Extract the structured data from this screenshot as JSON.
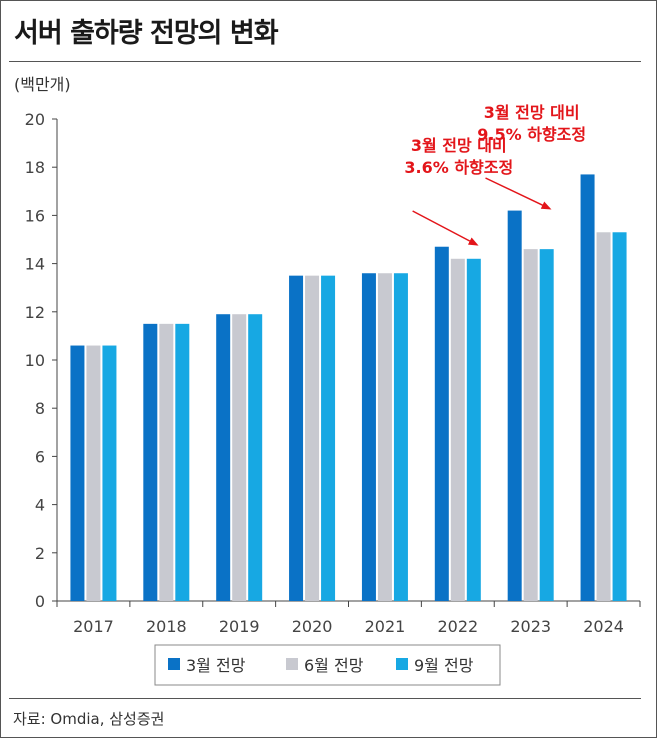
{
  "header": {
    "title": "서버 출하량 전망의 변화",
    "unit": "(백만개)"
  },
  "footer": {
    "source": "자료: Omdia, 삼성증권"
  },
  "chart_data": {
    "type": "bar",
    "categories": [
      "2017",
      "2018",
      "2019",
      "2020",
      "2021",
      "2022",
      "2023",
      "2024"
    ],
    "series": [
      {
        "name": "3월 전망",
        "color": "#0a72c6",
        "values": [
          10.6,
          11.5,
          11.9,
          13.5,
          13.6,
          14.7,
          16.2,
          17.7
        ]
      },
      {
        "name": "6월 전망",
        "color": "#c8c9d0",
        "values": [
          10.6,
          11.5,
          11.9,
          13.5,
          13.6,
          14.2,
          14.6,
          15.3
        ]
      },
      {
        "name": "9월 전망",
        "color": "#17a8e3",
        "values": [
          10.6,
          11.5,
          11.9,
          13.5,
          13.6,
          14.2,
          14.6,
          15.3
        ]
      }
    ],
    "ylabel": "(백만개)",
    "ylim": [
      0,
      20
    ],
    "yticks": [
      0,
      2,
      4,
      6,
      8,
      10,
      12,
      14,
      16,
      18,
      20
    ],
    "grid": false,
    "legend": "bottom",
    "annotations": [
      {
        "lines": [
          "3월 전망 대비",
          "3.6% 하향조정"
        ],
        "target": "2022"
      },
      {
        "lines": [
          "3월 전망 대비",
          "9.5% 하향조정"
        ],
        "target": "2023"
      }
    ]
  }
}
